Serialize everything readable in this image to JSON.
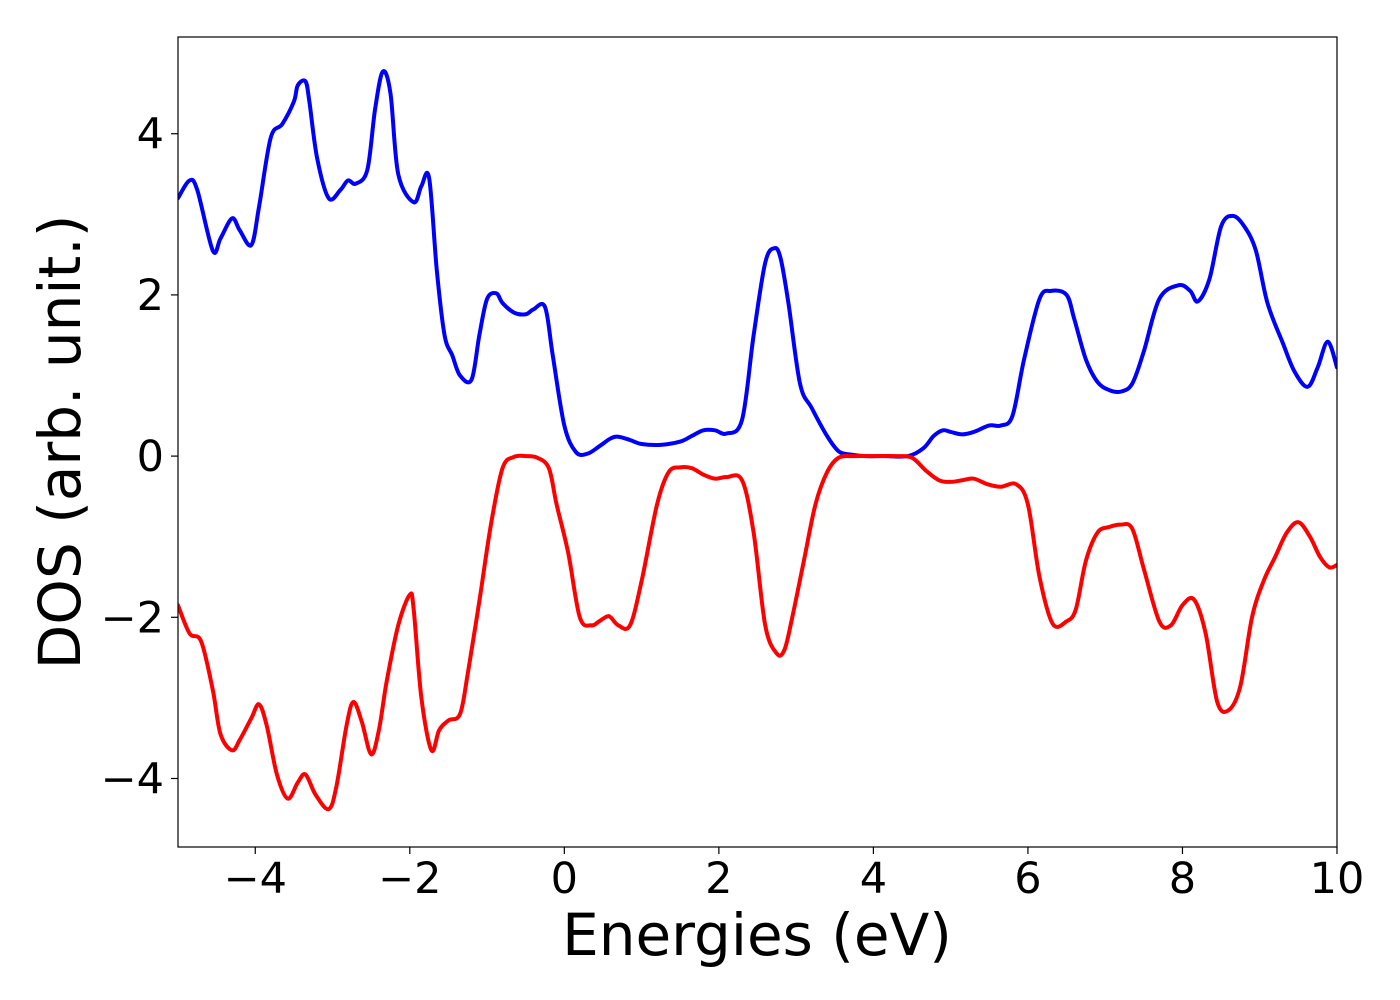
{
  "chart_data": {
    "type": "line",
    "title": "",
    "xlabel": "Energies (eV)",
    "ylabel": "DOS (arb. unit.)",
    "xlim": [
      -5,
      10
    ],
    "ylim": [
      -4.85,
      5.2
    ],
    "xticks": [
      -4,
      -2,
      0,
      2,
      4,
      6,
      8,
      10
    ],
    "yticks": [
      -4,
      -2,
      0,
      2,
      4
    ],
    "xtick_labels": [
      "−4",
      "−2",
      "0",
      "2",
      "4",
      "6",
      "8",
      "10"
    ],
    "ytick_labels": [
      "−4",
      "−2",
      "0",
      "2",
      "4"
    ],
    "grid": false,
    "legend": "none",
    "series": [
      {
        "color": "#0000ff",
        "x": [
          -5.0,
          -4.85,
          -4.75,
          -4.55,
          -4.45,
          -4.3,
          -4.2,
          -4.05,
          -3.95,
          -3.8,
          -3.65,
          -3.5,
          -3.45,
          -3.35,
          -3.3,
          -3.2,
          -3.05,
          -2.9,
          -2.8,
          -2.7,
          -2.55,
          -2.45,
          -2.35,
          -2.25,
          -2.15,
          -1.95,
          -1.85,
          -1.75,
          -1.65,
          -1.55,
          -1.45,
          -1.35,
          -1.2,
          -1.1,
          -1.0,
          -0.88,
          -0.8,
          -0.65,
          -0.5,
          -0.4,
          -0.25,
          -0.15,
          0.0,
          0.15,
          0.3,
          0.45,
          0.6,
          0.7,
          0.85,
          1.0,
          1.25,
          1.5,
          1.65,
          1.8,
          1.95,
          2.1,
          2.3,
          2.45,
          2.6,
          2.72,
          2.8,
          2.9,
          3.05,
          3.2,
          3.4,
          3.55,
          3.7,
          3.9,
          4.15,
          4.45,
          4.65,
          4.78,
          4.9,
          5.0,
          5.15,
          5.3,
          5.5,
          5.65,
          5.8,
          5.95,
          6.15,
          6.3,
          6.5,
          6.6,
          6.75,
          6.9,
          7.05,
          7.2,
          7.35,
          7.5,
          7.7,
          7.95,
          8.1,
          8.2,
          8.35,
          8.5,
          8.65,
          8.8,
          8.95,
          9.1,
          9.3,
          9.45,
          9.62,
          9.75,
          9.88,
          10.0
        ],
        "values": [
          3.2,
          3.42,
          3.3,
          2.55,
          2.7,
          2.95,
          2.8,
          2.62,
          3.1,
          3.95,
          4.12,
          4.4,
          4.6,
          4.65,
          4.4,
          3.7,
          3.2,
          3.3,
          3.42,
          3.38,
          3.55,
          4.3,
          4.77,
          4.5,
          3.5,
          3.15,
          3.35,
          3.45,
          2.3,
          1.5,
          1.25,
          1.0,
          0.95,
          1.5,
          1.95,
          2.02,
          1.9,
          1.78,
          1.76,
          1.82,
          1.85,
          1.25,
          0.38,
          0.05,
          0.03,
          0.12,
          0.22,
          0.24,
          0.2,
          0.15,
          0.14,
          0.18,
          0.25,
          0.32,
          0.32,
          0.28,
          0.45,
          1.5,
          2.4,
          2.58,
          2.45,
          1.9,
          0.9,
          0.6,
          0.25,
          0.06,
          0.02,
          0.0,
          0.0,
          0.0,
          0.1,
          0.25,
          0.32,
          0.3,
          0.27,
          0.3,
          0.38,
          0.38,
          0.5,
          1.2,
          1.95,
          2.05,
          2.0,
          1.7,
          1.2,
          0.92,
          0.82,
          0.8,
          0.9,
          1.3,
          1.95,
          2.12,
          2.05,
          1.92,
          2.2,
          2.85,
          2.98,
          2.85,
          2.55,
          1.9,
          1.4,
          1.05,
          0.86,
          1.1,
          1.42,
          1.1
        ]
      },
      {
        "color": "#ff0000",
        "x": [
          -5.0,
          -4.85,
          -4.7,
          -4.55,
          -4.45,
          -4.3,
          -4.2,
          -4.05,
          -3.95,
          -3.85,
          -3.72,
          -3.58,
          -3.45,
          -3.35,
          -3.22,
          -3.05,
          -2.95,
          -2.82,
          -2.73,
          -2.62,
          -2.5,
          -2.4,
          -2.3,
          -2.15,
          -2.0,
          -1.95,
          -1.85,
          -1.72,
          -1.62,
          -1.5,
          -1.35,
          -1.25,
          -1.1,
          -0.95,
          -0.8,
          -0.65,
          -0.5,
          -0.35,
          -0.2,
          -0.1,
          0.05,
          0.2,
          0.35,
          0.45,
          0.55,
          0.6,
          0.7,
          0.85,
          1.0,
          1.2,
          1.35,
          1.5,
          1.65,
          1.8,
          1.95,
          2.1,
          2.3,
          2.45,
          2.6,
          2.75,
          2.85,
          2.95,
          3.1,
          3.25,
          3.4,
          3.55,
          3.75,
          4.0,
          4.3,
          4.5,
          4.68,
          4.85,
          5.0,
          5.15,
          5.3,
          5.48,
          5.65,
          5.85,
          6.0,
          6.15,
          6.32,
          6.5,
          6.62,
          6.75,
          6.9,
          7.05,
          7.2,
          7.35,
          7.5,
          7.7,
          7.85,
          8.0,
          8.15,
          8.3,
          8.45,
          8.6,
          8.75,
          8.9,
          9.05,
          9.2,
          9.35,
          9.5,
          9.65,
          9.78,
          9.9,
          10.0
        ],
        "values": [
          -1.85,
          -2.2,
          -2.3,
          -2.9,
          -3.45,
          -3.65,
          -3.52,
          -3.25,
          -3.08,
          -3.35,
          -3.95,
          -4.25,
          -4.05,
          -3.95,
          -4.2,
          -4.38,
          -4.1,
          -3.35,
          -3.05,
          -3.3,
          -3.7,
          -3.4,
          -2.8,
          -2.1,
          -1.72,
          -1.9,
          -3.0,
          -3.65,
          -3.4,
          -3.28,
          -3.2,
          -2.7,
          -1.8,
          -0.85,
          -0.15,
          -0.01,
          0.0,
          -0.02,
          -0.15,
          -0.6,
          -1.2,
          -2.0,
          -2.1,
          -2.05,
          -1.99,
          -2.0,
          -2.1,
          -2.1,
          -1.55,
          -0.6,
          -0.2,
          -0.14,
          -0.15,
          -0.23,
          -0.28,
          -0.26,
          -0.3,
          -0.95,
          -2.1,
          -2.45,
          -2.4,
          -2.0,
          -1.3,
          -0.6,
          -0.2,
          -0.02,
          0.0,
          0.0,
          0.0,
          -0.02,
          -0.18,
          -0.3,
          -0.32,
          -0.3,
          -0.28,
          -0.35,
          -0.38,
          -0.35,
          -0.6,
          -1.5,
          -2.08,
          -2.05,
          -1.9,
          -1.3,
          -0.95,
          -0.88,
          -0.85,
          -0.9,
          -1.4,
          -2.05,
          -2.1,
          -1.85,
          -1.78,
          -2.2,
          -3.05,
          -3.15,
          -2.85,
          -2.0,
          -1.55,
          -1.25,
          -0.95,
          -0.82,
          -1.0,
          -1.25,
          -1.38,
          -1.35
        ]
      }
    ]
  }
}
